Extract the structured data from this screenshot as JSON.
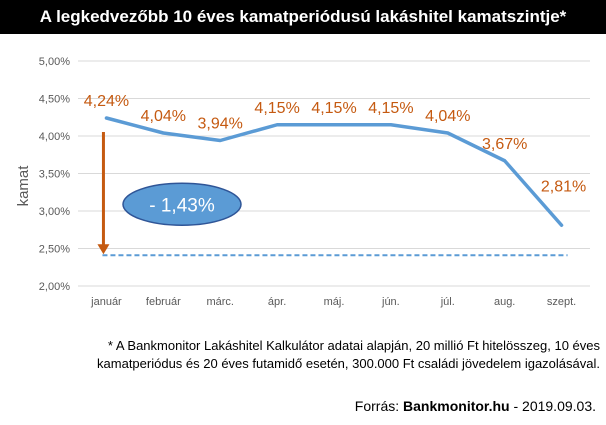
{
  "title": "A legkedvezőbb 10 éves kamatperiódusú lakáshitel kamatszintje*",
  "chart_data": {
    "type": "line",
    "categories": [
      "január",
      "február",
      "márc.",
      "ápr.",
      "máj.",
      "jún.",
      "júl.",
      "aug.",
      "szept."
    ],
    "series": [
      {
        "values": [
          4.24,
          4.04,
          3.94,
          4.15,
          4.15,
          4.15,
          4.04,
          3.67,
          2.81
        ]
      }
    ],
    "data_labels": [
      "4,24%",
      "4,04%",
      "3,94%",
      "4,15%",
      "4,15%",
      "4,15%",
      "4,04%",
      "3,67%",
      "2,81%"
    ],
    "reference_line": {
      "value": 2.41,
      "style": "dashed"
    },
    "ylabel": "kamat",
    "xlabel": "",
    "ylim": [
      2.0,
      5.0
    ],
    "yticks": [
      2.0,
      2.5,
      3.0,
      3.5,
      4.0,
      4.5,
      5.0
    ],
    "ytick_labels": [
      "2,00%",
      "2,50%",
      "3,00%",
      "3,50%",
      "4,00%",
      "4,50%",
      "5,00%"
    ],
    "grid": true,
    "annotation": {
      "text": "- 1,43%",
      "arrow_from": 4.24,
      "arrow_to": 2.41
    },
    "colors": {
      "line": "#5b9bd5",
      "labels": "#c55a11",
      "arrow": "#c55a11",
      "ellipse_fill": "#5b9bd5",
      "ellipse_stroke": "#2f5597",
      "grid": "#d9d9d9",
      "ticks": "#595959"
    }
  },
  "footnote": "* A Bankmonitor Lakáshitel Kalkulátor adatai alapján, 20 millió Ft hitelösszeg, 10 éves kamatperiódus és 20 éves futamidő esetén, 300.000 Ft családi jövedelem igazolásával.",
  "source": {
    "prefix": "Forrás: ",
    "brand": "Bankmonitor.hu",
    "suffix": " - 2019.09.03."
  }
}
